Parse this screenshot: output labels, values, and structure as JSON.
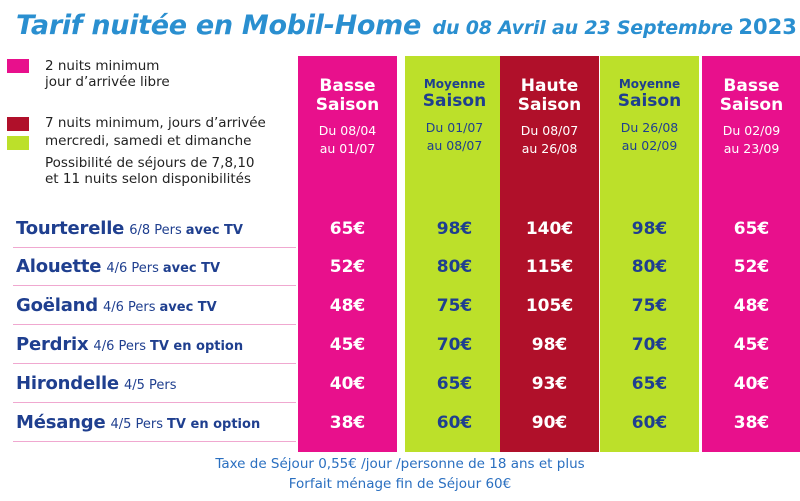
{
  "title": {
    "main": "Tarif nuitée en Mobil-Home",
    "dates": "du 08 Avril au 23 Septembre",
    "year": "2023"
  },
  "legend": [
    {
      "color": "#e8108c",
      "lines": [
        "2 nuits minimum",
        "jour d’arrivée libre"
      ]
    },
    {
      "color": "#b0102a",
      "lines": [
        "7 nuits minimum, jours d’arrivée"
      ]
    },
    {
      "color": "#bce02a",
      "lines": [
        "mercredi, samedi et dimanche"
      ]
    },
    {
      "color": null,
      "lines": [
        "Possibilité de séjours de 7,8,10",
        "et 11 nuits selon disponibilités"
      ]
    }
  ],
  "columns": [
    {
      "name_l1": "Basse",
      "name_l2": "Saison",
      "small": false,
      "date_l1": "Du 08/04",
      "date_l2": "au 01/07",
      "bg": "#e8108c",
      "fg": "#ffffff"
    },
    {
      "name_l1": "Moyenne",
      "name_l2": "Saison",
      "small": true,
      "date_l1": "Du 01/07",
      "date_l2": "au 08/07",
      "bg": "#bce02a",
      "fg": "#1f3f8f"
    },
    {
      "name_l1": "Haute",
      "name_l2": "Saison",
      "small": false,
      "date_l1": "Du 08/07",
      "date_l2": "au 26/08",
      "bg": "#b0102a",
      "fg": "#ffffff"
    },
    {
      "name_l1": "Moyenne",
      "name_l2": "Saison",
      "small": true,
      "date_l1": "Du 26/08",
      "date_l2": "au 02/09",
      "bg": "#bce02a",
      "fg": "#1f3f8f"
    },
    {
      "name_l1": "Basse",
      "name_l2": "Saison",
      "small": false,
      "date_l1": "Du 02/09",
      "date_l2": "au 23/09",
      "bg": "#e8108c",
      "fg": "#ffffff"
    }
  ],
  "rows": [
    {
      "name": "Tourterelle",
      "persons": "6/8 Pers",
      "tv": "avec TV",
      "prices": [
        "65€",
        "98€",
        "140€",
        "98€",
        "65€"
      ]
    },
    {
      "name": "Alouette",
      "persons": "4/6 Pers",
      "tv": "avec TV",
      "prices": [
        "52€",
        "80€",
        "115€",
        "80€",
        "52€"
      ]
    },
    {
      "name": "Goëland",
      "persons": "4/6 Pers",
      "tv": "avec TV",
      "prices": [
        "48€",
        "75€",
        "105€",
        "75€",
        "48€"
      ]
    },
    {
      "name": "Perdrix",
      "persons": "4/6 Pers",
      "tv": "TV en option",
      "prices": [
        "45€",
        "70€",
        "98€",
        "70€",
        "45€"
      ]
    },
    {
      "name": "Hirondelle",
      "persons": "4/5 Pers",
      "tv": "",
      "prices": [
        "40€",
        "65€",
        "93€",
        "65€",
        "40€"
      ]
    },
    {
      "name": "Mésange",
      "persons": "4/5 Pers",
      "tv": "TV en option",
      "prices": [
        "38€",
        "60€",
        "90€",
        "60€",
        "38€"
      ]
    }
  ],
  "footer": {
    "tax": "Taxe de Séjour  0,55€ /jour /personne de 18 ans et plus",
    "cleaning": "Forfait ménage fin de Séjour 60€"
  }
}
